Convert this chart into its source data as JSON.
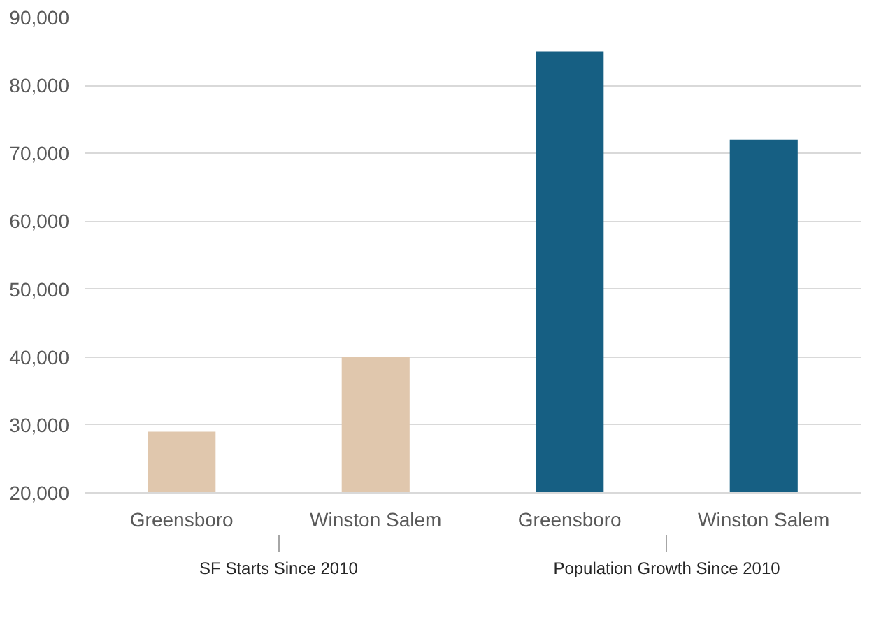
{
  "chart_data": {
    "type": "bar",
    "categories": [
      "Greensboro",
      "Winston Salem",
      "Greensboro",
      "Winston Salem"
    ],
    "values": [
      29000,
      40000,
      85000,
      72000
    ],
    "colors": [
      "#e0c7ad",
      "#e0c7ad",
      "#165f83",
      "#165f83"
    ],
    "annotations": [
      "SF Starts Since 2010",
      "Population Growth Since 2010"
    ],
    "ylim": [
      20000,
      90000
    ],
    "yticks": [
      {
        "value": 20000,
        "label": "20,000"
      },
      {
        "value": 30000,
        "label": "30,000"
      },
      {
        "value": 40000,
        "label": "40,000"
      },
      {
        "value": 50000,
        "label": "50,000"
      },
      {
        "value": 60000,
        "label": "60,000"
      },
      {
        "value": 70000,
        "label": "70,000"
      },
      {
        "value": 80000,
        "label": "80,000"
      },
      {
        "value": 90000,
        "label": "90,000"
      }
    ],
    "grid": "y"
  }
}
